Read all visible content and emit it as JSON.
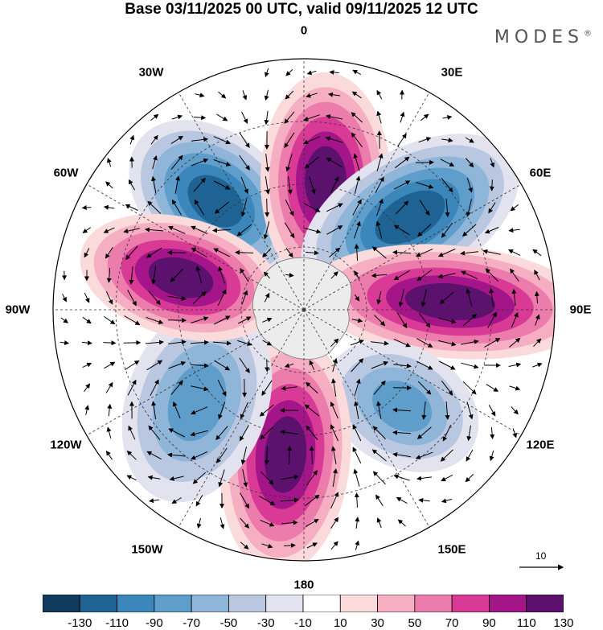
{
  "title": "Base 03/11/2025 00 UTC, valid 09/11/2025 12 UTC",
  "brand": {
    "name": "MODES",
    "mark": "®"
  },
  "longitude_labels": [
    "0",
    "30E",
    "60E",
    "90E",
    "120E",
    "150E",
    "180",
    "150W",
    "120W",
    "90W",
    "60W",
    "30W"
  ],
  "reference_vector": {
    "label": "10"
  },
  "colorbar": {
    "tick_labels": [
      "-130",
      "-110",
      "-90",
      "-70",
      "-50",
      "-30",
      "-10",
      "10",
      "30",
      "50",
      "70",
      "90",
      "110",
      "130"
    ],
    "colors": [
      "#103a5e",
      "#1e6394",
      "#3b86bb",
      "#5f9ecb",
      "#8fb6d9",
      "#b9c8e0",
      "#e3e3ef",
      "#ffffff",
      "#fadada",
      "#f6aec3",
      "#ec7cac",
      "#d83a96",
      "#a4158a",
      "#5c116f"
    ]
  },
  "anomalies": [
    {
      "id": "neg-30w",
      "value": -130
    },
    {
      "id": "pos-0",
      "value": 130
    },
    {
      "id": "neg-40e",
      "value": -130
    },
    {
      "id": "pos-90e",
      "value": 130
    },
    {
      "id": "neg-140e",
      "value": -90
    },
    {
      "id": "pos-180",
      "value": 130
    },
    {
      "id": "neg-130w",
      "value": -90
    },
    {
      "id": "pos-80w",
      "value": 130
    }
  ]
}
